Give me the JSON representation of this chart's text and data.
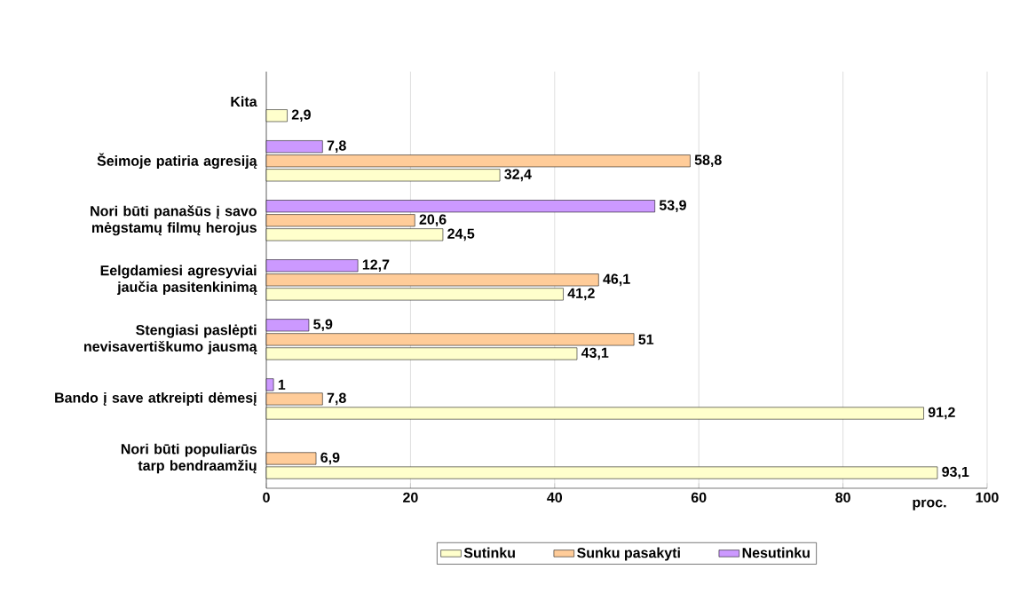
{
  "chart_data": {
    "type": "bar",
    "orientation": "horizontal",
    "categories": [
      "Kita",
      "Šeimoje patiria agresiją",
      "Nori būti panašūs į savo mėgstamų filmų herojus",
      "Eelgdamiesi agresyviai jaučia pasitenkinimą",
      "Stengiasi paslėpti nevisavertiškumo jausmą",
      "Bando į save atkreipti dėmesį",
      "Nori būti populiarūs tarp bendraamžių"
    ],
    "series": [
      {
        "name": "Sutinku",
        "color": "#ffffcc",
        "values": [
          2.9,
          32.4,
          24.5,
          41.2,
          43.1,
          91.2,
          93.1
        ],
        "value_labels": [
          "2,9",
          "32,4",
          "24,5",
          "41,2",
          "43,1",
          "91,2",
          "93,1"
        ]
      },
      {
        "name": "Sunku pasakyti",
        "color": "#ffcc99",
        "values": [
          null,
          58.8,
          20.6,
          46.1,
          51,
          7.8,
          6.9
        ],
        "value_labels": [
          null,
          "58,8",
          "20,6",
          "46,1",
          "51",
          "7,8",
          "6,9"
        ]
      },
      {
        "name": "Nesutinku",
        "color": "#cc99ff",
        "values": [
          null,
          7.8,
          53.9,
          12.7,
          5.9,
          1,
          null
        ],
        "value_labels": [
          null,
          "7,8",
          "53,9",
          "12,7",
          "5,9",
          "1",
          null
        ]
      }
    ],
    "xlim": [
      0,
      100
    ],
    "xticks": [
      0,
      20,
      40,
      60,
      80,
      100
    ],
    "xlabel": "proc.",
    "grid": "x",
    "legend": "bottom"
  }
}
